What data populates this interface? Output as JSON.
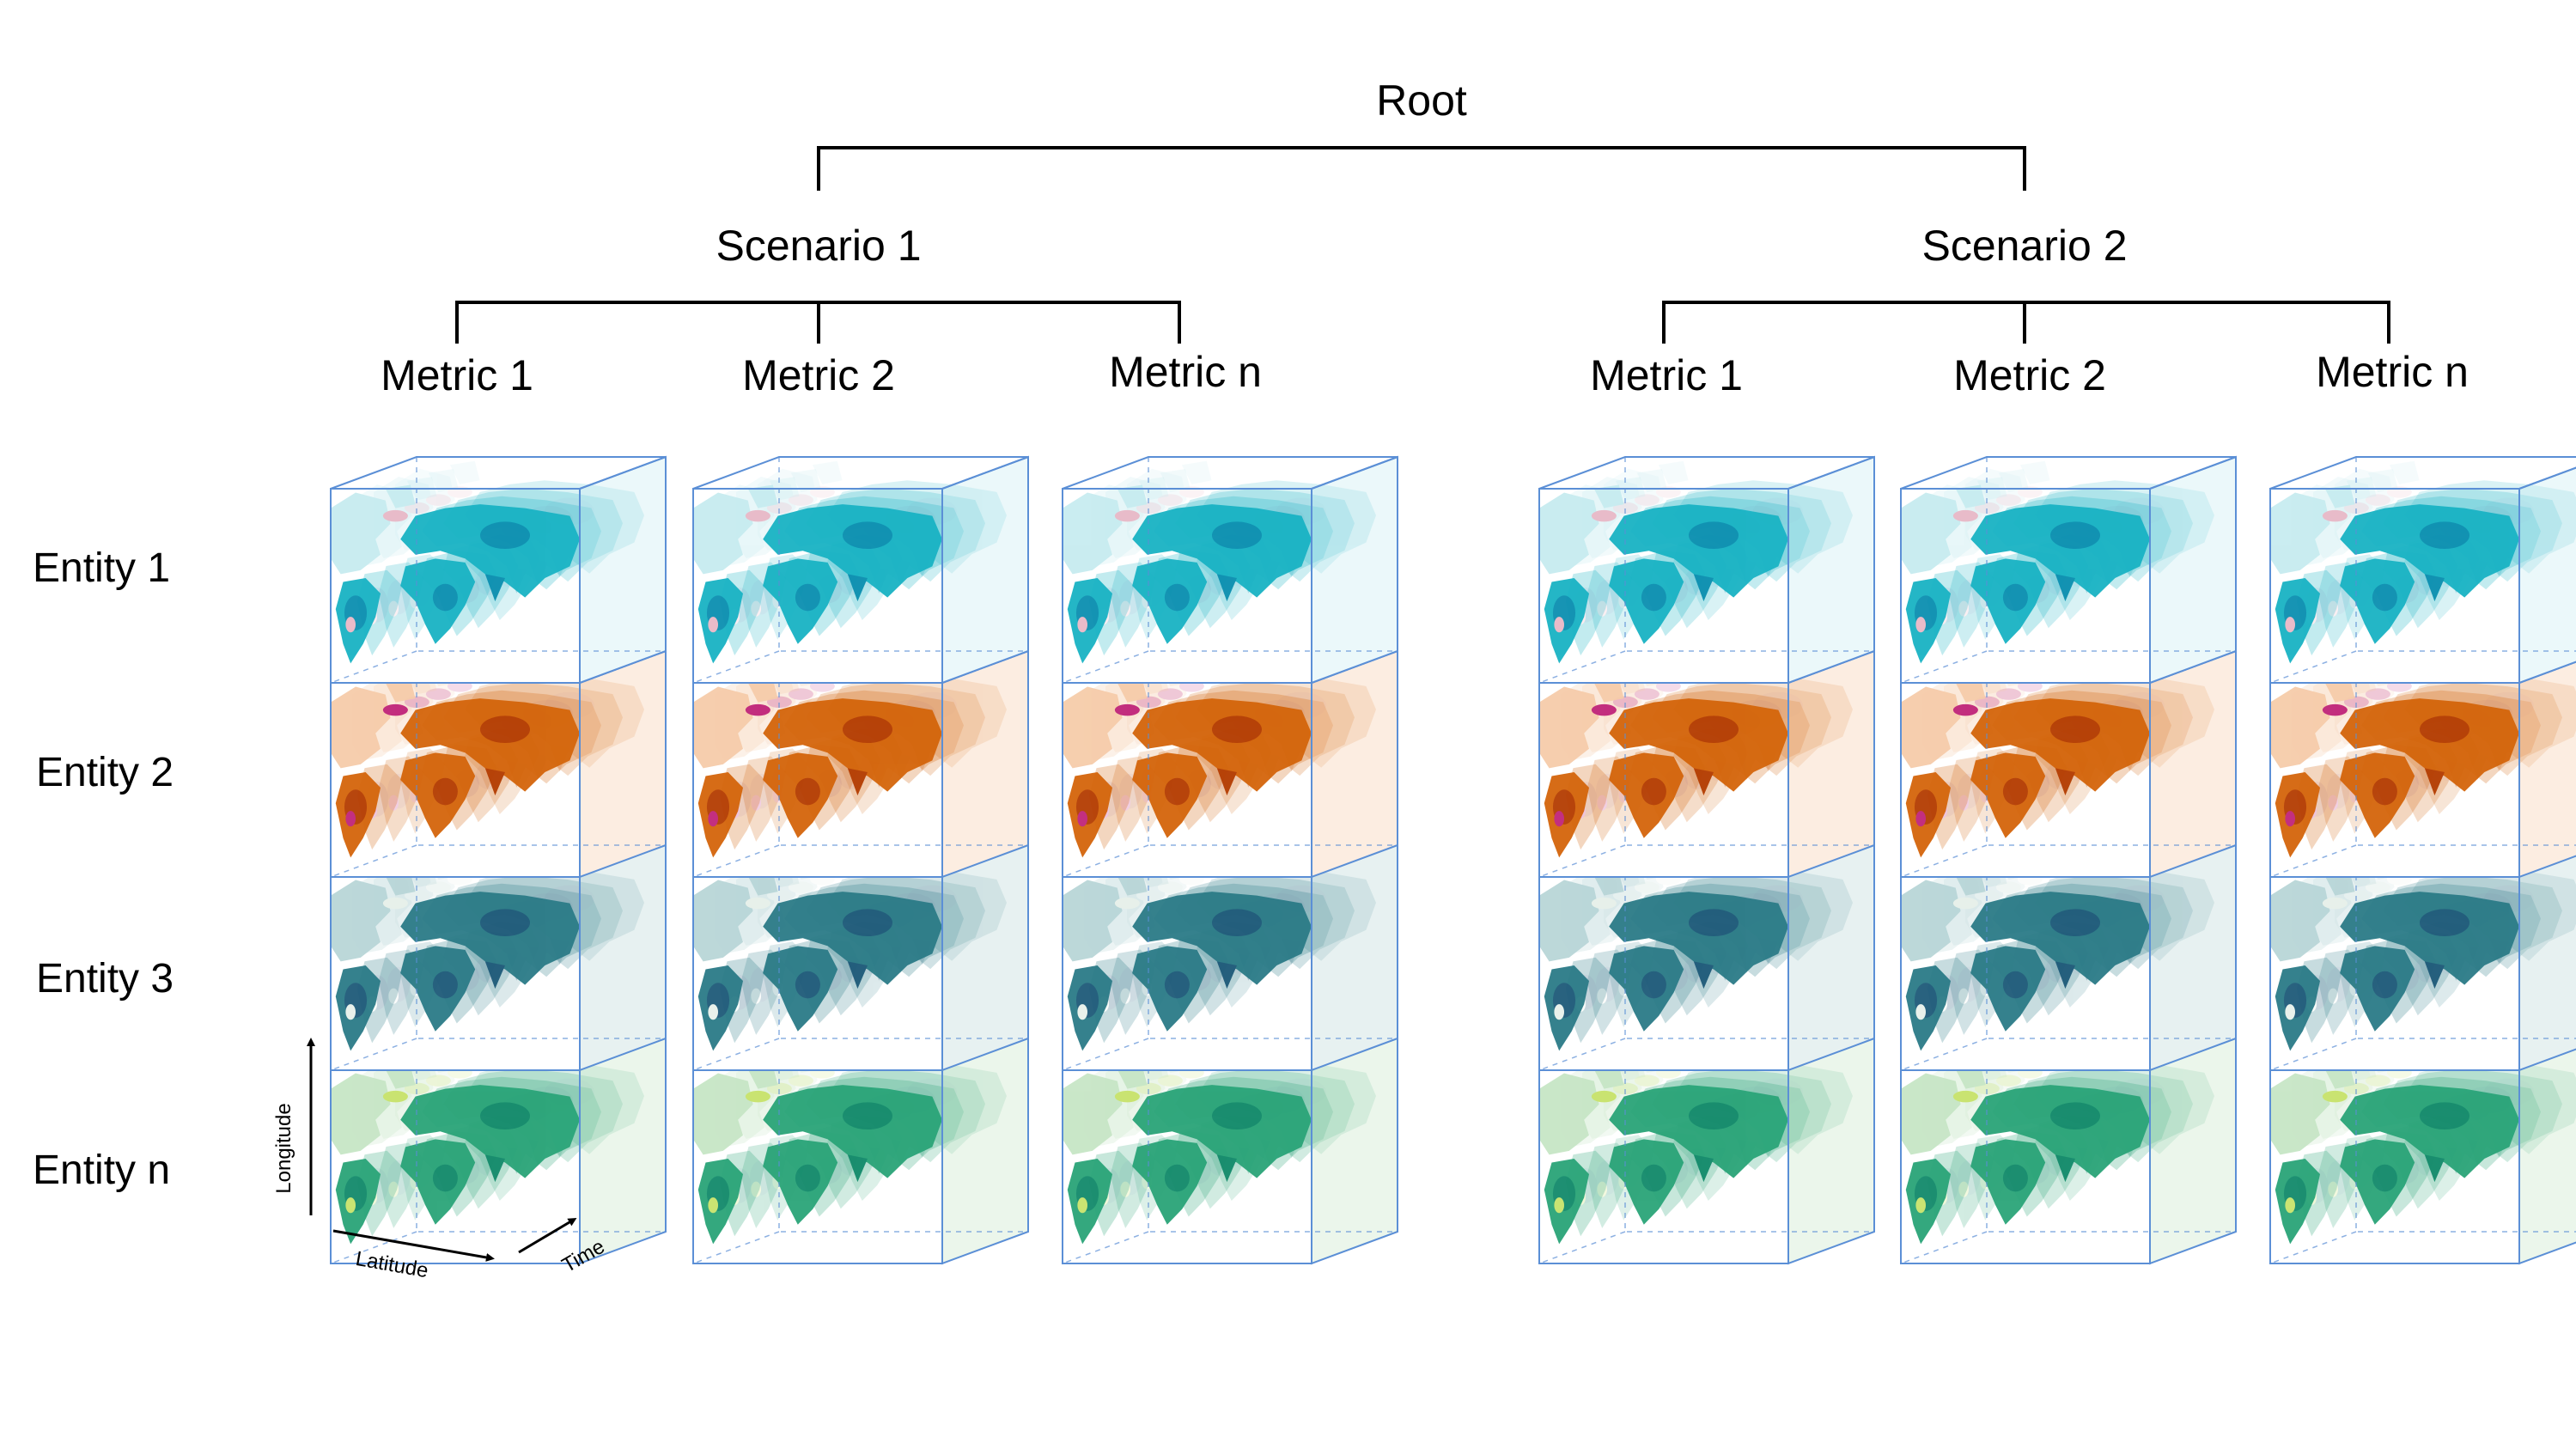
{
  "tree": {
    "root_label": "Root",
    "scenarios": [
      {
        "label": "Scenario 1",
        "metrics": [
          "Metric 1",
          "Metric 2",
          "Metric n"
        ]
      },
      {
        "label": "Scenario 2",
        "metrics": [
          "Metric 1",
          "Metric 2",
          "Metric n"
        ]
      }
    ]
  },
  "entities": [
    "Entity 1",
    "Entity 2",
    "Entity 3",
    "Entity n"
  ],
  "axes": {
    "vertical": "Longitude",
    "horizontal": "Latitude",
    "depth": "Time"
  },
  "cube_palettes": [
    {
      "row": "Entity 1",
      "colors": [
        "#0b8fb0",
        "#19b3c4",
        "#6ccfd8",
        "#c7ecf0",
        "#e9b8c7"
      ]
    },
    {
      "row": "Entity 2",
      "colors": [
        "#b43d02",
        "#d4650b",
        "#e99a52",
        "#f6ccaa",
        "#c0247a"
      ]
    },
    {
      "row": "Entity 3",
      "colors": [
        "#1e5a79",
        "#2b7b87",
        "#58a5a4",
        "#b9d6d8",
        "#e8f1ea"
      ]
    },
    {
      "row": "Entity n",
      "colors": [
        "#138a6b",
        "#2aa478",
        "#75c59a",
        "#c7e6c6",
        "#c8e36b"
      ]
    }
  ],
  "colors": {
    "line": "#000000",
    "cube_edge": "#5b8fd6"
  }
}
